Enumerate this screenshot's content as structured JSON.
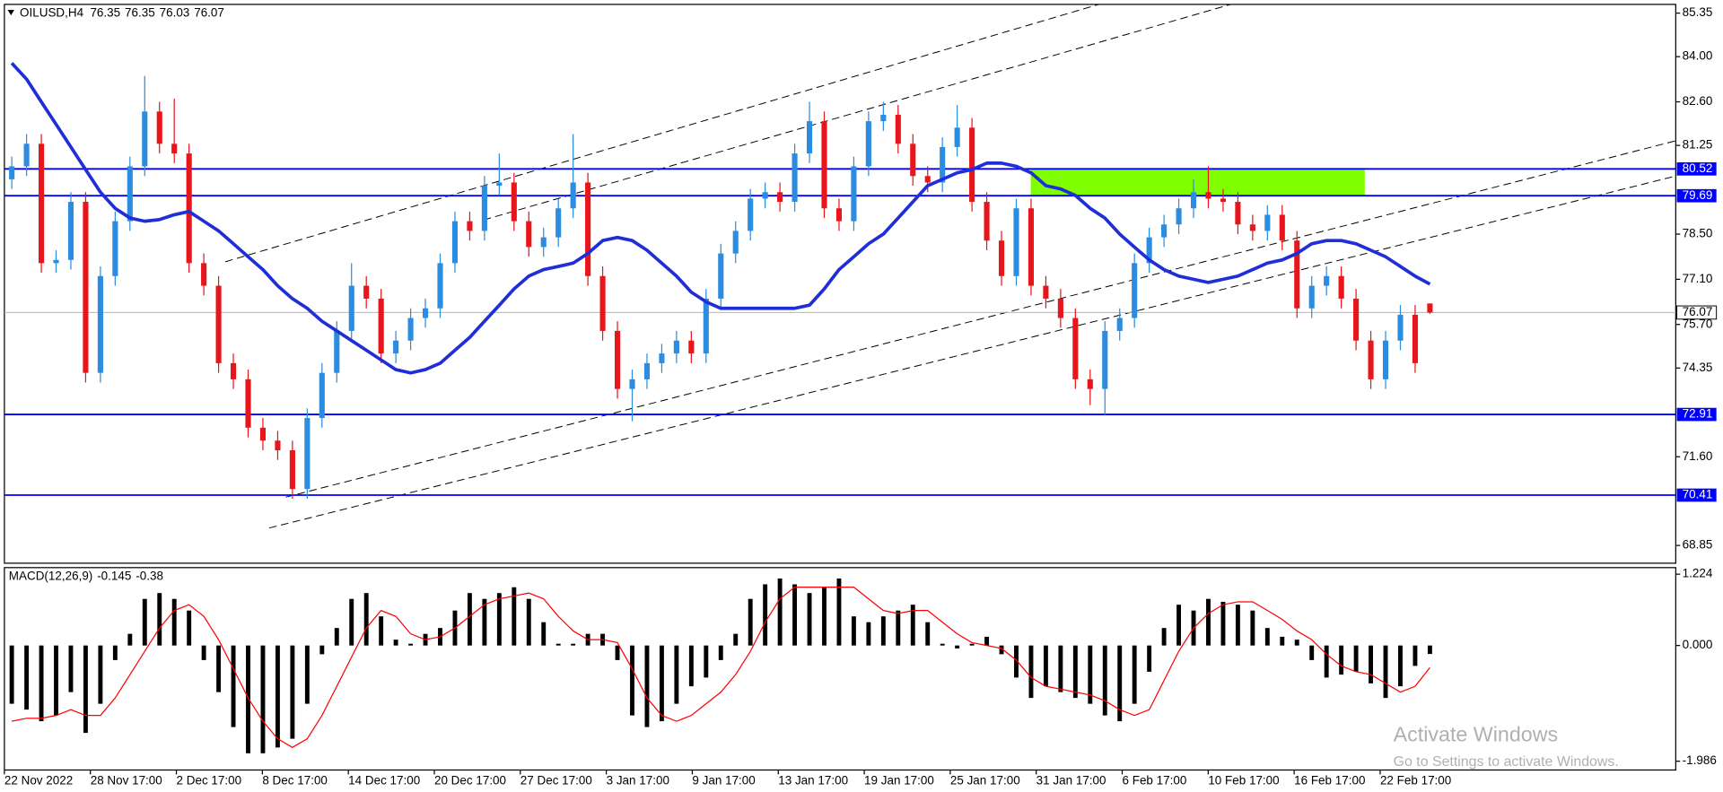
{
  "chart_data": [
    {
      "type": "candlestick",
      "symbol": "OILUSD,H4",
      "up_color": "#2b8ce0",
      "down_color": "#e8161b",
      "open": [
        80.2,
        80.6,
        81.3,
        77.6,
        77.7,
        79.5,
        74.2,
        77.2,
        78.9,
        80.6,
        82.3,
        81.3,
        81.0,
        77.6,
        76.9,
        74.5,
        74.0,
        72.5,
        72.1,
        71.8,
        70.6,
        72.8,
        74.2,
        75.5,
        76.9,
        76.5,
        74.8,
        75.2,
        75.9,
        76.2,
        77.6,
        78.9,
        78.6,
        80.0,
        80.1,
        78.9,
        78.1,
        78.4,
        79.3,
        80.1,
        77.2,
        75.5,
        73.7,
        74.0,
        74.5,
        74.8,
        75.2,
        74.8,
        76.5,
        77.9,
        78.6,
        79.6,
        79.8,
        79.5,
        81.0,
        82.0,
        79.3,
        78.9,
        80.6,
        82.0,
        82.2,
        81.3,
        80.3,
        80.1,
        81.2,
        81.8,
        79.5,
        78.3,
        77.2,
        79.3,
        76.9,
        76.5,
        75.9,
        74.0,
        73.7,
        75.5,
        75.9,
        77.6,
        78.4,
        78.8,
        79.3,
        79.8,
        79.6,
        79.5,
        78.8,
        78.6,
        79.1,
        78.3,
        76.2,
        76.9,
        77.2,
        76.5,
        75.2,
        74.0,
        75.2,
        76.0,
        76.35
      ],
      "high": [
        80.9,
        81.6,
        81.6,
        78.0,
        79.8,
        79.8,
        77.5,
        79.2,
        80.9,
        83.4,
        82.6,
        82.7,
        81.3,
        77.9,
        77.2,
        74.8,
        74.3,
        72.8,
        72.4,
        72.1,
        73.1,
        74.5,
        75.8,
        77.6,
        77.2,
        76.8,
        75.5,
        76.2,
        76.5,
        77.9,
        79.2,
        79.2,
        80.3,
        81.0,
        80.4,
        79.2,
        78.7,
        79.6,
        81.6,
        80.4,
        77.5,
        75.8,
        74.3,
        74.8,
        75.1,
        75.5,
        75.5,
        76.8,
        78.2,
        78.9,
        79.9,
        80.1,
        80.1,
        81.3,
        82.6,
        82.3,
        79.6,
        80.9,
        82.3,
        82.6,
        82.5,
        81.6,
        80.6,
        81.5,
        82.5,
        82.1,
        79.8,
        78.6,
        79.6,
        79.6,
        77.2,
        76.8,
        76.2,
        74.3,
        75.8,
        76.2,
        77.9,
        78.7,
        79.1,
        79.6,
        80.2,
        80.6,
        79.9,
        79.8,
        79.1,
        79.4,
        79.4,
        78.6,
        77.2,
        77.5,
        77.5,
        76.8,
        75.5,
        75.5,
        76.3,
        76.3,
        76.35
      ],
      "low": [
        79.9,
        80.3,
        77.3,
        77.3,
        77.4,
        73.9,
        73.9,
        76.9,
        78.6,
        80.3,
        81.0,
        80.7,
        77.3,
        76.6,
        74.2,
        73.7,
        72.2,
        71.8,
        71.5,
        70.3,
        70.3,
        72.5,
        73.9,
        75.2,
        76.2,
        74.5,
        74.5,
        74.9,
        75.6,
        75.9,
        77.3,
        78.3,
        78.3,
        79.7,
        78.6,
        77.8,
        77.8,
        78.1,
        79.0,
        76.9,
        75.2,
        73.4,
        72.7,
        73.7,
        74.2,
        74.5,
        74.5,
        74.5,
        76.2,
        77.6,
        78.3,
        79.3,
        79.2,
        79.2,
        80.7,
        79.0,
        78.6,
        78.6,
        80.3,
        81.7,
        81.0,
        80.0,
        79.8,
        79.8,
        80.9,
        79.2,
        78.0,
        76.9,
        76.9,
        76.6,
        76.2,
        75.6,
        73.7,
        73.2,
        72.9,
        75.2,
        75.6,
        77.3,
        78.1,
        78.5,
        79.0,
        79.3,
        79.2,
        78.5,
        78.3,
        78.3,
        78.0,
        75.9,
        75.9,
        76.6,
        76.2,
        74.9,
        73.7,
        73.7,
        74.9,
        74.2,
        76.03
      ],
      "close": [
        80.6,
        81.3,
        77.6,
        77.7,
        79.5,
        74.2,
        77.2,
        78.9,
        80.6,
        82.3,
        81.3,
        81.0,
        77.6,
        76.9,
        74.5,
        74.0,
        72.5,
        72.1,
        71.8,
        70.6,
        72.8,
        74.2,
        75.5,
        76.9,
        76.5,
        74.8,
        75.2,
        75.9,
        76.2,
        77.6,
        78.9,
        78.6,
        80.0,
        80.1,
        78.9,
        78.1,
        78.4,
        79.3,
        80.1,
        77.2,
        75.5,
        73.7,
        74.0,
        74.5,
        74.8,
        75.2,
        74.8,
        76.5,
        77.9,
        78.6,
        79.6,
        79.8,
        79.5,
        81.0,
        82.0,
        79.3,
        78.9,
        80.6,
        82.0,
        82.2,
        81.3,
        80.3,
        80.1,
        81.2,
        81.8,
        79.5,
        78.3,
        77.2,
        79.3,
        76.9,
        76.5,
        75.9,
        74.0,
        73.7,
        75.5,
        75.9,
        77.6,
        78.4,
        78.8,
        79.3,
        79.8,
        79.6,
        79.5,
        78.8,
        78.6,
        79.1,
        78.3,
        76.2,
        76.9,
        77.2,
        76.5,
        75.2,
        74.0,
        75.2,
        76.0,
        74.5,
        76.07
      ],
      "ma": {
        "color": "#1f2ed6",
        "values": [
          83.8,
          83.3,
          82.6,
          81.9,
          81.2,
          80.5,
          79.8,
          79.3,
          79.0,
          78.9,
          78.95,
          79.1,
          79.2,
          78.9,
          78.6,
          78.2,
          77.8,
          77.4,
          76.9,
          76.5,
          76.2,
          75.8,
          75.5,
          75.2,
          74.9,
          74.6,
          74.3,
          74.2,
          74.3,
          74.5,
          74.9,
          75.3,
          75.8,
          76.3,
          76.8,
          77.2,
          77.4,
          77.5,
          77.6,
          77.9,
          78.3,
          78.4,
          78.3,
          78.0,
          77.6,
          77.2,
          76.7,
          76.4,
          76.2,
          76.2,
          76.2,
          76.2,
          76.2,
          76.2,
          76.3,
          76.8,
          77.4,
          77.8,
          78.2,
          78.5,
          79.0,
          79.5,
          80.0,
          80.2,
          80.4,
          80.5,
          80.7,
          80.7,
          80.6,
          80.4,
          80.0,
          79.9,
          79.7,
          79.3,
          79.0,
          78.5,
          78.1,
          77.7,
          77.4,
          77.2,
          77.1,
          77.0,
          77.1,
          77.2,
          77.4,
          77.6,
          77.7,
          77.9,
          78.2,
          78.3,
          78.3,
          78.2,
          78.0,
          77.8,
          77.5,
          77.2,
          76.95
        ]
      },
      "levels": [
        80.52,
        79.69,
        72.91,
        70.41
      ],
      "level_color": "#0000ff",
      "zone_color": "#7fff00",
      "ylim": [
        68.3,
        85.62
      ],
      "yticks": [
        85.35,
        {
          "value": 84,
          "label": "84.00"
        },
        {
          "value": 82.6,
          "label": "82.60"
        },
        81.25,
        {
          "value": 78.5,
          "label": "78.50"
        },
        {
          "value": 77.1,
          "label": "77.10"
        },
        {
          "value": 75.7,
          "label": "75.70"
        },
        74.35,
        {
          "value": 71.6,
          "label": "71.60"
        },
        68.85
      ]
    },
    {
      "type": "macd",
      "title": "MACD(12,26,9)",
      "color": "#000000",
      "signal_color": "#ff0000",
      "values": [
        -1.0,
        -1.1,
        -1.3,
        -1.2,
        -0.8,
        -1.5,
        -1.0,
        -0.25,
        0.2,
        0.8,
        0.9,
        0.8,
        0.6,
        -0.25,
        -0.8,
        -1.4,
        -1.85,
        -1.85,
        -1.75,
        -1.6,
        -1.0,
        -0.15,
        0.3,
        0.8,
        0.9,
        0.5,
        0.1,
        0.03,
        0.2,
        0.3,
        0.6,
        0.9,
        0.8,
        0.9,
        1.0,
        0.8,
        0.4,
        0.03,
        0.03,
        0.2,
        0.2,
        -0.25,
        -1.2,
        -1.4,
        -1.3,
        -1.0,
        -0.7,
        -0.55,
        -0.25,
        0.2,
        0.8,
        1.05,
        1.15,
        1.05,
        0.9,
        1.0,
        1.15,
        0.5,
        0.4,
        0.5,
        0.6,
        0.7,
        0.4,
        0.03,
        -0.05,
        0.03,
        0.15,
        -0.15,
        -0.55,
        -0.9,
        -0.7,
        -0.8,
        -0.9,
        -1.0,
        -1.2,
        -1.3,
        -1.0,
        -0.45,
        0.3,
        0.7,
        0.6,
        0.8,
        0.75,
        0.7,
        0.6,
        0.3,
        0.15,
        0.1,
        -0.25,
        -0.55,
        -0.5,
        -0.45,
        -0.65,
        -0.9,
        -0.7,
        -0.35,
        -0.145
      ],
      "signal": [
        -1.3,
        -1.25,
        -1.25,
        -1.2,
        -1.1,
        -1.2,
        -1.2,
        -0.9,
        -0.5,
        -0.1,
        0.3,
        0.6,
        0.7,
        0.5,
        0.1,
        -0.4,
        -0.9,
        -1.3,
        -1.6,
        -1.75,
        -1.6,
        -1.2,
        -0.7,
        -0.2,
        0.3,
        0.6,
        0.5,
        0.2,
        0.1,
        0.15,
        0.3,
        0.5,
        0.7,
        0.8,
        0.85,
        0.9,
        0.8,
        0.5,
        0.25,
        0.1,
        0.1,
        0.05,
        -0.4,
        -0.9,
        -1.2,
        -1.3,
        -1.2,
        -1.0,
        -0.8,
        -0.5,
        -0.1,
        0.4,
        0.8,
        1.0,
        1.0,
        1.0,
        1.0,
        1.0,
        0.8,
        0.6,
        0.55,
        0.6,
        0.6,
        0.4,
        0.2,
        0.05,
        0.0,
        -0.05,
        -0.25,
        -0.55,
        -0.7,
        -0.75,
        -0.8,
        -0.85,
        -0.95,
        -1.1,
        -1.2,
        -1.1,
        -0.6,
        -0.1,
        0.3,
        0.55,
        0.7,
        0.75,
        0.75,
        0.6,
        0.45,
        0.25,
        0.1,
        -0.15,
        -0.35,
        -0.45,
        -0.5,
        -0.65,
        -0.8,
        -0.7,
        -0.38
      ],
      "ylim": [
        -2.137,
        1.337
      ],
      "yticks": [
        1.224,
        {
          "value": 0,
          "label": "0.000"
        },
        -1.986
      ]
    }
  ],
  "x_labels": [
    "22 Nov 2022",
    "28 Nov 17:00",
    "2 Dec 17:00",
    "8 Dec 17:00",
    "14 Dec 17:00",
    "20 Dec 17:00",
    "27 Dec 17:00",
    "3 Jan 17:00",
    "9 Jan 17:00",
    "13 Jan 17:00",
    "19 Jan 17:00",
    "25 Jan 17:00",
    "31 Jan 17:00",
    "6 Feb 17:00",
    "10 Feb 17:00",
    "16 Feb 17:00",
    "22 Feb 17:00"
  ],
  "watermark": {
    "title": "Activate Windows",
    "subtitle": "Go to Settings to activate Windows."
  }
}
